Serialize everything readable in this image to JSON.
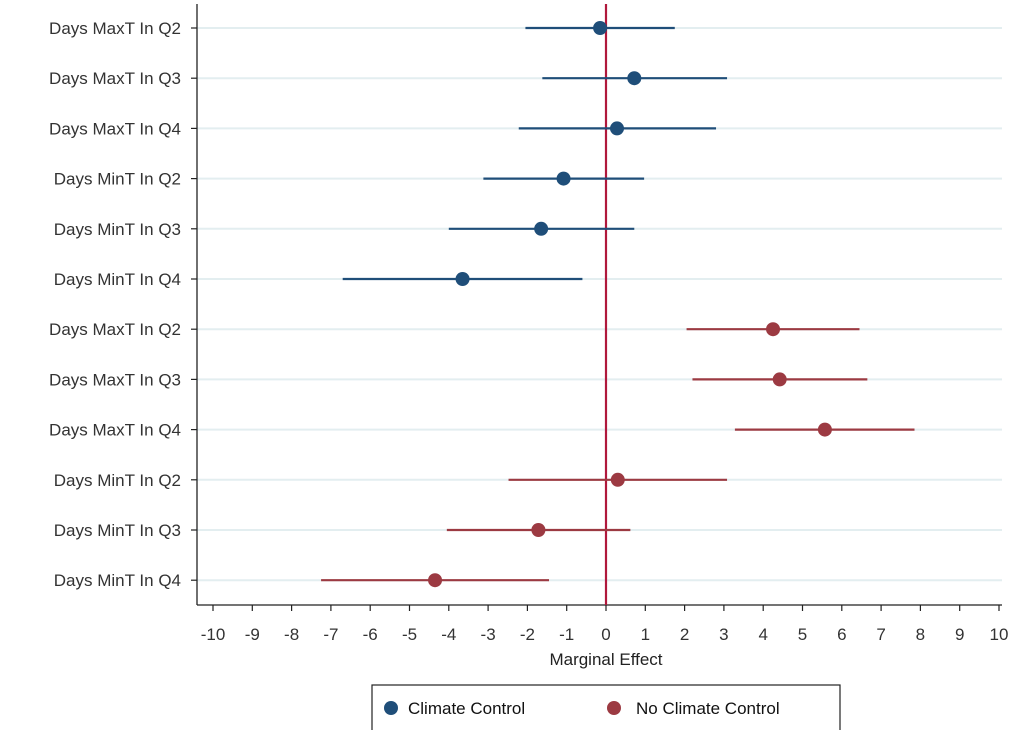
{
  "chart_data": {
    "type": "scatter",
    "subtype": "coefficient-plot",
    "orientation": "horizontal",
    "xlabel": "Marginal Effect",
    "ylabel": "",
    "xlim": [
      -10,
      10
    ],
    "xticks": [
      -10,
      -9,
      -8,
      -7,
      -6,
      -5,
      -4,
      -3,
      -2,
      -1,
      0,
      1,
      2,
      3,
      4,
      5,
      6,
      7,
      8,
      9,
      10
    ],
    "reference_line": 0,
    "grid": "horizontal",
    "legend_position": "bottom",
    "series": [
      {
        "name": "Climate Control",
        "color": "#1f4e79",
        "points": [
          {
            "label": "Days MaxT In Q2",
            "estimate": -0.15,
            "ci": [
              -2.05,
              1.75
            ]
          },
          {
            "label": "Days MaxT In Q3",
            "estimate": 0.72,
            "ci": [
              -1.62,
              3.08
            ]
          },
          {
            "label": "Days MaxT In Q4",
            "estimate": 0.28,
            "ci": [
              -2.22,
              2.8
            ]
          },
          {
            "label": "Days MinT In Q2",
            "estimate": -1.08,
            "ci": [
              -3.12,
              0.97
            ]
          },
          {
            "label": "Days MinT In Q3",
            "estimate": -1.65,
            "ci": [
              -4.0,
              0.72
            ]
          },
          {
            "label": "Days MinT In Q4",
            "estimate": -3.65,
            "ci": [
              -6.7,
              -0.6
            ]
          }
        ]
      },
      {
        "name": "No Climate Control",
        "color": "#9c3a42",
        "points": [
          {
            "label": "Days MaxT In Q2",
            "estimate": 4.25,
            "ci": [
              2.05,
              6.45
            ]
          },
          {
            "label": "Days MaxT In Q3",
            "estimate": 4.42,
            "ci": [
              2.2,
              6.65
            ]
          },
          {
            "label": "Days MaxT In Q4",
            "estimate": 5.57,
            "ci": [
              3.28,
              7.85
            ]
          },
          {
            "label": "Days MinT In Q2",
            "estimate": 0.3,
            "ci": [
              -2.48,
              3.08
            ]
          },
          {
            "label": "Days MinT In Q3",
            "estimate": -1.72,
            "ci": [
              -4.05,
              0.62
            ]
          },
          {
            "label": "Days MinT In Q4",
            "estimate": -4.35,
            "ci": [
              -7.25,
              -1.45
            ]
          }
        ]
      }
    ],
    "colors": {
      "reference_line": "#b0183c",
      "grid": "#e3eef0",
      "axis": "#222222"
    }
  }
}
